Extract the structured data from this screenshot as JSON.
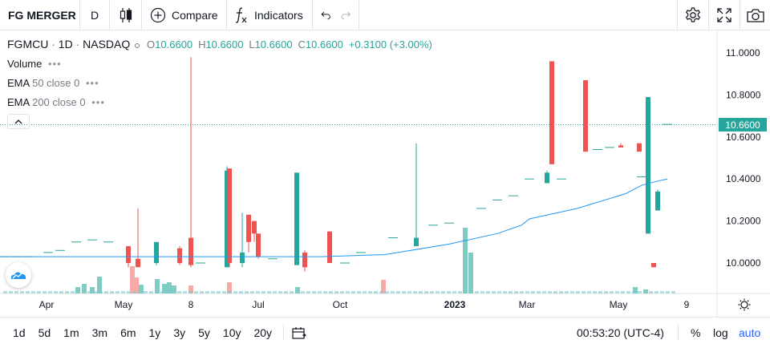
{
  "toolbar": {
    "symbol": "FG MERGER",
    "interval": "D",
    "compare_label": "Compare",
    "indicators_label": "Indicators"
  },
  "legend": {
    "symbol": "FGMCU",
    "interval": "1D",
    "exchange": "NASDAQ",
    "o_key": "O",
    "o_val": "10.6600",
    "h_key": "H",
    "h_val": "10.6600",
    "l_key": "L",
    "l_val": "10.6600",
    "c_key": "C",
    "c_val": "10.6600",
    "change": "+0.3100 (+3.00%)"
  },
  "studies": [
    {
      "name": "Volume",
      "params": ""
    },
    {
      "name": "EMA",
      "params": "50 close 0"
    },
    {
      "name": "EMA",
      "params": "200 close 0"
    }
  ],
  "price_axis": {
    "ticks": [
      "11.0000",
      "10.8000",
      "10.6000",
      "10.4000",
      "10.2000",
      "10.0000"
    ],
    "last_price": "10.6600"
  },
  "time_axis": {
    "ticks": [
      "Apr",
      "May",
      "8",
      "Jul",
      "Oct",
      "2023",
      "Mar",
      "May",
      "9"
    ]
  },
  "ranges": [
    "1d",
    "5d",
    "1m",
    "3m",
    "6m",
    "1y",
    "3y",
    "5y",
    "10y",
    "20y"
  ],
  "status": {
    "clock": "00:53:20 (UTC-4)",
    "percent": "%",
    "log": "log",
    "auto": "auto"
  },
  "colors": {
    "up": "#26a69a",
    "down": "#ef5350",
    "ema": "#2196f3",
    "accent": "#2962ff",
    "volume_up": "#80cbc4",
    "volume_down": "#f7a9a7"
  },
  "icons": {
    "chart_type": "candles-icon",
    "compare": "plus-circle-icon",
    "indicators": "fx-icon",
    "undo": "undo-icon",
    "redo": "redo-icon",
    "settings": "gear-icon",
    "fullscreen": "fullscreen-icon",
    "screenshot": "camera-icon",
    "goto_date": "calendar-icon",
    "time_settings": "sun-gear-icon",
    "collapse": "chevron-up-icon",
    "logo": "tradingview-logo"
  }
}
